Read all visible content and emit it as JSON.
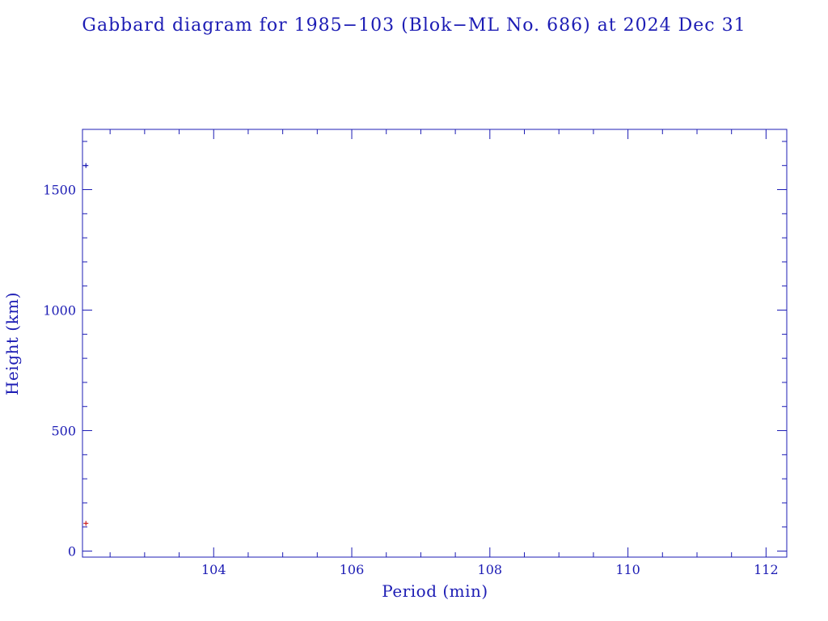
{
  "colors": {
    "axis": "#1c1cb4",
    "apogee": "#1c1cb4",
    "perigee": "#cc2020",
    "background": "#ffffff"
  },
  "chart_data": {
    "type": "scatter",
    "title": "Gabbard diagram for 1985−103 (Blok−ML No. 686) at 2024 Dec 31",
    "xlabel": "Period (min)",
    "ylabel": "Height (km)",
    "xlim": [
      102.1,
      112.3
    ],
    "ylim": [
      -25,
      1750
    ],
    "x_major_ticks": [
      104,
      106,
      108,
      110,
      112
    ],
    "x_minor_step": 0.5,
    "y_major_ticks": [
      0,
      500,
      1000,
      1500
    ],
    "y_minor_step": 100,
    "grid": false,
    "legend": "none",
    "series": [
      {
        "role": "apogee",
        "color": "#1c1cb4",
        "x": [
          102.15
        ],
        "y": [
          1600
        ]
      },
      {
        "role": "perigee",
        "color": "#cc2020",
        "x": [
          102.15
        ],
        "y": [
          115
        ]
      }
    ]
  }
}
